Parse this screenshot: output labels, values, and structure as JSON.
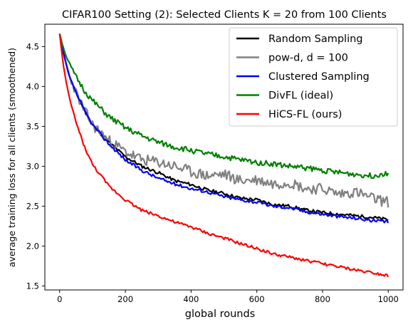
{
  "chart_data": {
    "type": "line",
    "title": "CIFAR100 Setting (2): Selected Clients K = 20 from 100 Clients",
    "xlabel": "global rounds",
    "ylabel": "average training loss for all clients (smoothened)",
    "xlim": [
      -45,
      1045
    ],
    "ylim": [
      1.45,
      4.78
    ],
    "xticks": [
      0,
      200,
      400,
      600,
      800,
      1000
    ],
    "yticks": [
      1.5,
      2.0,
      2.5,
      3.0,
      3.5,
      4.0,
      4.5
    ],
    "xtick_labels": [
      "0",
      "200",
      "400",
      "600",
      "800",
      "1000"
    ],
    "ytick_labels": [
      "1.5",
      "2.0",
      "2.5",
      "3.0",
      "3.5",
      "4.0",
      "4.5"
    ],
    "grid": false,
    "legend_position": "top-right",
    "series": [
      {
        "name": "Random Sampling",
        "color": "#000000",
        "x": [
          0,
          10,
          20,
          30,
          50,
          75,
          100,
          150,
          200,
          250,
          300,
          350,
          400,
          450,
          500,
          550,
          600,
          650,
          700,
          750,
          800,
          850,
          900,
          950,
          1000
        ],
        "y": [
          4.66,
          4.45,
          4.28,
          4.12,
          3.92,
          3.7,
          3.52,
          3.3,
          3.12,
          3.0,
          2.92,
          2.82,
          2.77,
          2.7,
          2.66,
          2.6,
          2.58,
          2.52,
          2.5,
          2.45,
          2.42,
          2.4,
          2.38,
          2.36,
          2.33
        ]
      },
      {
        "name": "pow-d, d = 100",
        "color": "#808080",
        "x": [
          0,
          10,
          20,
          30,
          50,
          75,
          100,
          150,
          200,
          250,
          300,
          350,
          400,
          450,
          500,
          550,
          600,
          650,
          700,
          750,
          800,
          850,
          900,
          950,
          1000
        ],
        "y": [
          4.66,
          4.45,
          4.28,
          4.12,
          3.92,
          3.7,
          3.52,
          3.32,
          3.18,
          3.08,
          3.05,
          3.0,
          2.93,
          2.88,
          2.9,
          2.82,
          2.83,
          2.78,
          2.8,
          2.72,
          2.72,
          2.65,
          2.68,
          2.6,
          2.55
        ]
      },
      {
        "name": "Clustered Sampling",
        "color": "#0000ff",
        "x": [
          0,
          10,
          20,
          30,
          50,
          75,
          100,
          150,
          200,
          250,
          300,
          350,
          400,
          450,
          500,
          550,
          600,
          650,
          700,
          750,
          800,
          850,
          900,
          950,
          1000
        ],
        "y": [
          4.66,
          4.45,
          4.28,
          4.12,
          3.92,
          3.7,
          3.52,
          3.28,
          3.08,
          2.95,
          2.85,
          2.78,
          2.72,
          2.68,
          2.62,
          2.58,
          2.55,
          2.5,
          2.48,
          2.43,
          2.4,
          2.37,
          2.35,
          2.32,
          2.3
        ]
      },
      {
        "name": "DivFL (ideal)",
        "color": "#008000",
        "x": [
          0,
          10,
          20,
          30,
          50,
          75,
          100,
          150,
          200,
          250,
          300,
          350,
          400,
          450,
          500,
          550,
          600,
          650,
          700,
          750,
          800,
          850,
          900,
          950,
          1000
        ],
        "y": [
          4.66,
          4.5,
          4.38,
          4.28,
          4.12,
          3.95,
          3.82,
          3.62,
          3.48,
          3.38,
          3.3,
          3.24,
          3.2,
          3.15,
          3.12,
          3.08,
          3.05,
          3.03,
          3.0,
          2.98,
          2.95,
          2.92,
          2.9,
          2.88,
          2.92
        ]
      },
      {
        "name": "HiCS-FL (ours)",
        "color": "#ff0000",
        "x": [
          0,
          10,
          20,
          30,
          50,
          75,
          100,
          150,
          200,
          250,
          300,
          350,
          400,
          450,
          500,
          550,
          600,
          650,
          700,
          750,
          800,
          850,
          900,
          950,
          1000
        ],
        "y": [
          4.66,
          4.3,
          4.05,
          3.85,
          3.55,
          3.25,
          3.02,
          2.75,
          2.58,
          2.45,
          2.38,
          2.3,
          2.24,
          2.16,
          2.1,
          2.03,
          1.97,
          1.9,
          1.86,
          1.82,
          1.78,
          1.74,
          1.7,
          1.67,
          1.63
        ]
      }
    ]
  }
}
